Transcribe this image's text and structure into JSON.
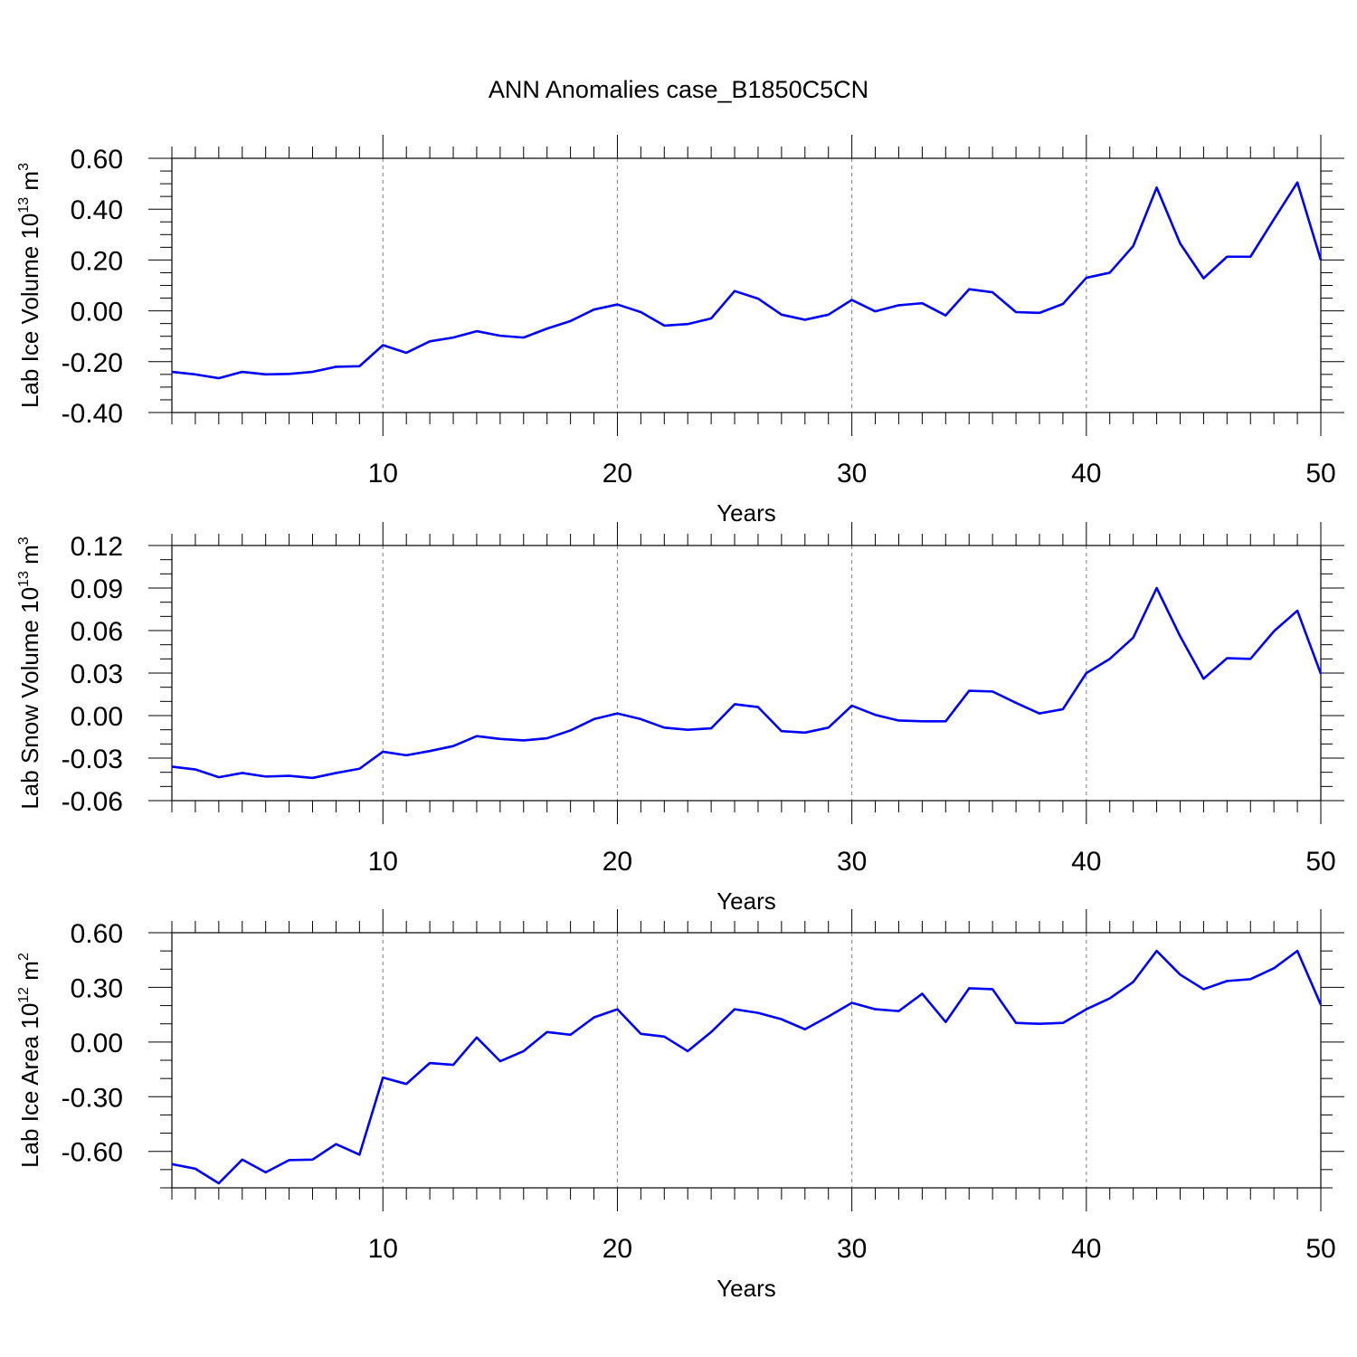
{
  "page": {
    "title": "ANN Anomalies case_B1850C5CN"
  },
  "colors": {
    "series_line": "#0000ff",
    "axes": "#000000",
    "gridline": "#808080",
    "background": "#ffffff"
  },
  "chart_data": [
    {
      "type": "line",
      "ylabel_main": "Lab Ice Volume 10",
      "ylabel_exp": "13",
      "ylabel_unit": " m",
      "ylabel_unit_exp": "3",
      "xlabel": "Years",
      "xlim": [
        1,
        50
      ],
      "ylim": [
        -0.4,
        0.6
      ],
      "yticks": [
        -0.4,
        -0.2,
        0.0,
        0.2,
        0.4,
        0.6
      ],
      "ytick_labels": [
        "-0.40",
        "-0.20",
        "0.00",
        "0.20",
        "0.40",
        "0.60"
      ],
      "y_minor_step": 0.05,
      "xticks": [
        10,
        20,
        30,
        40,
        50
      ],
      "xtick_labels": [
        "10",
        "20",
        "30",
        "40",
        "50"
      ],
      "x_minor_step": 1,
      "x_grid": [
        10,
        20,
        30,
        40
      ],
      "series": [
        {
          "x": [
            1,
            2,
            3,
            4,
            5,
            6,
            7,
            8,
            9,
            10,
            11,
            12,
            13,
            14,
            15,
            16,
            17,
            18,
            19,
            20,
            21,
            22,
            23,
            24,
            25,
            26,
            27,
            28,
            29,
            30,
            31,
            32,
            33,
            34,
            35,
            36,
            37,
            38,
            39,
            40,
            41,
            42,
            43,
            44,
            45,
            46,
            47,
            48,
            49,
            50
          ],
          "values": [
            -0.24,
            -0.25,
            -0.265,
            -0.24,
            -0.25,
            -0.248,
            -0.24,
            -0.22,
            -0.218,
            -0.135,
            -0.165,
            -0.12,
            -0.105,
            -0.08,
            -0.098,
            -0.105,
            -0.07,
            -0.04,
            0.005,
            0.025,
            -0.005,
            -0.058,
            -0.052,
            -0.03,
            0.078,
            0.048,
            -0.015,
            -0.035,
            -0.015,
            0.043,
            -0.002,
            0.022,
            0.03,
            -0.018,
            0.085,
            0.073,
            -0.005,
            -0.008,
            0.027,
            0.13,
            0.15,
            0.255,
            0.485,
            0.265,
            0.128,
            0.213,
            0.213,
            0.36,
            0.505,
            0.2
          ]
        }
      ]
    },
    {
      "type": "line",
      "ylabel_main": "Lab Snow Volume 10",
      "ylabel_exp": "13",
      "ylabel_unit": " m",
      "ylabel_unit_exp": "3",
      "xlabel": "Years",
      "xlim": [
        1,
        50
      ],
      "ylim": [
        -0.06,
        0.12
      ],
      "yticks": [
        -0.06,
        -0.03,
        0.0,
        0.03,
        0.06,
        0.09,
        0.12
      ],
      "ytick_labels": [
        "-0.06",
        "-0.03",
        "0.00",
        "0.03",
        "0.06",
        "0.09",
        "0.12"
      ],
      "y_minor_step": 0.01,
      "xticks": [
        10,
        20,
        30,
        40,
        50
      ],
      "xtick_labels": [
        "10",
        "20",
        "30",
        "40",
        "50"
      ],
      "x_minor_step": 1,
      "x_grid": [
        10,
        20,
        30,
        40
      ],
      "series": [
        {
          "x": [
            1,
            2,
            3,
            4,
            5,
            6,
            7,
            8,
            9,
            10,
            11,
            12,
            13,
            14,
            15,
            16,
            17,
            18,
            19,
            20,
            21,
            22,
            23,
            24,
            25,
            26,
            27,
            28,
            29,
            30,
            31,
            32,
            33,
            34,
            35,
            36,
            37,
            38,
            39,
            40,
            41,
            42,
            43,
            44,
            45,
            46,
            47,
            48,
            49,
            50
          ],
          "values": [
            -0.036,
            -0.038,
            -0.0435,
            -0.0405,
            -0.043,
            -0.0425,
            -0.044,
            -0.0405,
            -0.0375,
            -0.0255,
            -0.028,
            -0.025,
            -0.0215,
            -0.0145,
            -0.0165,
            -0.0175,
            -0.016,
            -0.0105,
            -0.0025,
            0.0015,
            -0.0025,
            -0.0085,
            -0.01,
            -0.009,
            0.008,
            0.006,
            -0.011,
            -0.012,
            -0.0085,
            0.007,
            0.0005,
            -0.0035,
            -0.004,
            -0.004,
            0.0175,
            0.017,
            0.009,
            0.0015,
            0.0045,
            0.03,
            0.04,
            0.055,
            0.09,
            0.056,
            0.026,
            0.0405,
            0.04,
            0.0595,
            0.074,
            0.0295
          ]
        }
      ]
    },
    {
      "type": "line",
      "ylabel_main": "Lab Ice Area 10",
      "ylabel_exp": "12",
      "ylabel_unit": " m",
      "ylabel_unit_exp": "2",
      "xlabel": "Years",
      "xlim": [
        1,
        50
      ],
      "ylim": [
        -0.8,
        0.6
      ],
      "yticks": [
        -0.6,
        -0.3,
        0.0,
        0.3,
        0.6
      ],
      "ytick_labels": [
        "-0.60",
        "-0.30",
        "0.00",
        "0.30",
        "0.60"
      ],
      "y_minor_step": 0.1,
      "xticks": [
        10,
        20,
        30,
        40,
        50
      ],
      "xtick_labels": [
        "10",
        "20",
        "30",
        "40",
        "50"
      ],
      "x_minor_step": 1,
      "x_grid": [
        10,
        20,
        30,
        40
      ],
      "series": [
        {
          "x": [
            1,
            2,
            3,
            4,
            5,
            6,
            7,
            8,
            9,
            10,
            11,
            12,
            13,
            14,
            15,
            16,
            17,
            18,
            19,
            20,
            21,
            22,
            23,
            24,
            25,
            26,
            27,
            28,
            29,
            30,
            31,
            32,
            33,
            34,
            35,
            36,
            37,
            38,
            39,
            40,
            41,
            42,
            43,
            44,
            45,
            46,
            47,
            48,
            49,
            50
          ],
          "values": [
            -0.67,
            -0.695,
            -0.775,
            -0.645,
            -0.715,
            -0.648,
            -0.645,
            -0.56,
            -0.618,
            -0.195,
            -0.23,
            -0.115,
            -0.125,
            0.025,
            -0.105,
            -0.05,
            0.055,
            0.04,
            0.135,
            0.18,
            0.045,
            0.03,
            -0.05,
            0.055,
            0.18,
            0.16,
            0.125,
            0.07,
            0.14,
            0.215,
            0.18,
            0.17,
            0.265,
            0.11,
            0.295,
            0.29,
            0.105,
            0.1,
            0.105,
            0.18,
            0.24,
            0.33,
            0.5,
            0.37,
            0.29,
            0.335,
            0.345,
            0.405,
            0.5,
            0.205
          ]
        }
      ]
    }
  ]
}
